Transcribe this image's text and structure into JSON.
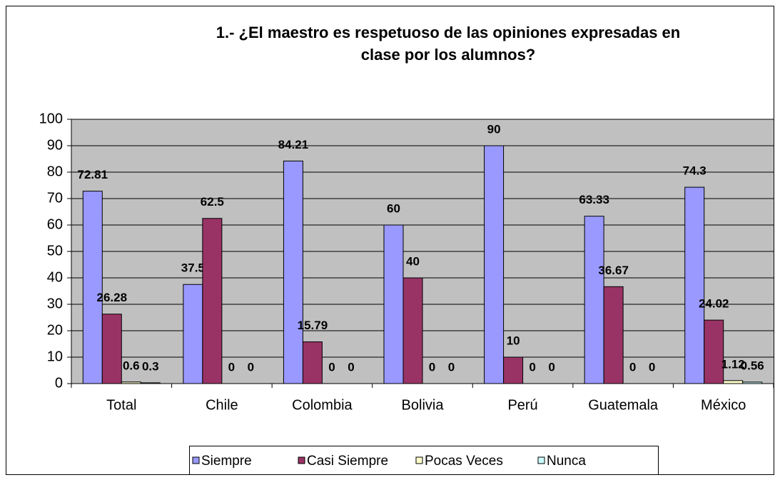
{
  "chart_data": {
    "type": "bar",
    "title": [
      "1.- ¿El maestro es respetuoso de las opiniones expresadas en",
      "clase por los alumnos?"
    ],
    "categories": [
      "Total",
      "Chile",
      "Colombia",
      "Bolivia",
      "Perú",
      "Guatemala",
      "México"
    ],
    "series": [
      {
        "name": "Siempre",
        "color": "#9999ff",
        "values": [
          72.81,
          37.5,
          84.21,
          60,
          90,
          63.33,
          74.3
        ]
      },
      {
        "name": "Casi Siempre",
        "color": "#993366",
        "values": [
          26.28,
          62.5,
          15.79,
          40,
          10,
          36.67,
          24.02
        ]
      },
      {
        "name": "Pocas Veces",
        "color": "#ffffcc",
        "values": [
          0.6,
          0,
          0,
          0,
          0,
          0,
          1.12
        ]
      },
      {
        "name": "Nunca",
        "color": "#ccffff",
        "values": [
          0.3,
          0,
          0,
          0,
          0,
          0,
          0.56
        ]
      }
    ],
    "ylim": [
      0,
      100
    ],
    "yticks": [
      0,
      10,
      20,
      30,
      40,
      50,
      60,
      70,
      80,
      90,
      100
    ],
    "grid": true,
    "legend": "bottom"
  }
}
